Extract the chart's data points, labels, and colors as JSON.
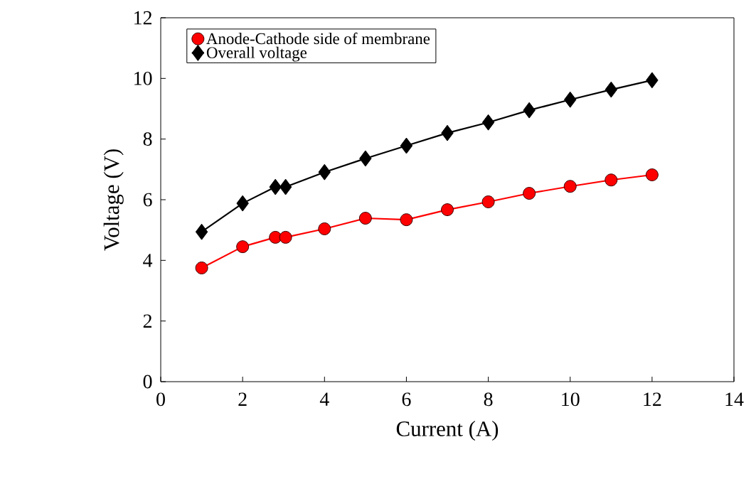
{
  "chart_data": {
    "type": "line",
    "xlabel": "Current (A)",
    "ylabel": "Voltage (V)",
    "xlim": [
      0,
      14
    ],
    "xticks": [
      0,
      2,
      4,
      6,
      8,
      10,
      12,
      14
    ],
    "ylim": [
      0,
      12
    ],
    "yticks": [
      0,
      2,
      4,
      6,
      8,
      10,
      12
    ],
    "legend": "top left",
    "line_style": "solid",
    "series": [
      {
        "name": "Anode-Cathode side of membrane",
        "color": "#ff0000",
        "marker": "circle",
        "x": [
          1,
          2,
          2.8,
          3.05,
          4,
          5,
          6,
          7,
          8,
          9,
          10,
          11,
          12
        ],
        "values": [
          3.75,
          4.45,
          4.76,
          4.76,
          5.04,
          5.39,
          5.34,
          5.67,
          5.93,
          6.21,
          6.44,
          6.65,
          6.82
        ]
      },
      {
        "name": "Overall voltage",
        "color": "#000000",
        "marker": "diamond",
        "x": [
          1,
          2,
          2.8,
          3.05,
          4,
          5,
          6,
          7,
          8,
          9,
          10,
          11,
          12
        ],
        "values": [
          4.94,
          5.88,
          6.42,
          6.42,
          6.91,
          7.36,
          7.78,
          8.2,
          8.55,
          8.95,
          9.3,
          9.63,
          9.94
        ]
      }
    ]
  }
}
